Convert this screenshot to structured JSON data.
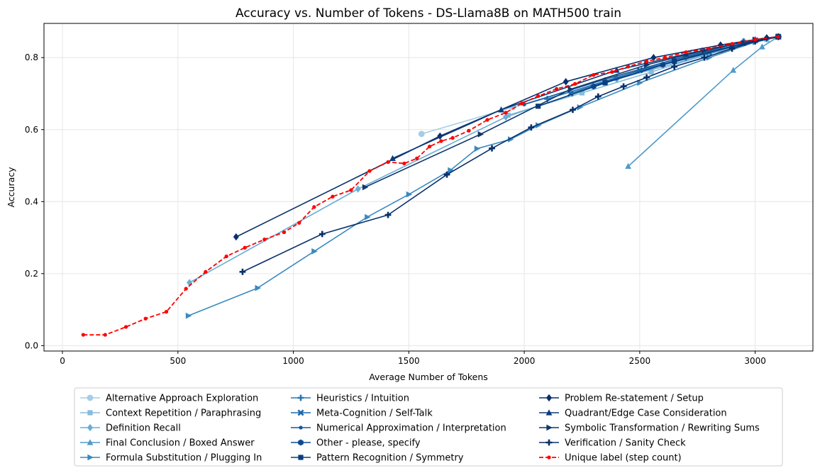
{
  "chart_data": {
    "type": "line",
    "title": "Accuracy vs. Number of Tokens - DS-Llama8B on MATH500 train",
    "xlabel": "Average Number of Tokens",
    "ylabel": "Accuracy",
    "xlim": [
      -80,
      3250
    ],
    "ylim": [
      -0.015,
      0.895
    ],
    "xticks": [
      0,
      500,
      1000,
      1500,
      2000,
      2500,
      3000
    ],
    "yticks": [
      0.0,
      0.2,
      0.4,
      0.6,
      0.8
    ],
    "xtick_labels": [
      "0",
      "500",
      "1000",
      "1500",
      "2000",
      "2500",
      "3000"
    ],
    "ytick_labels": [
      "0.0",
      "0.2",
      "0.4",
      "0.6",
      "0.8"
    ],
    "grid": true,
    "legend_position": "below",
    "series": [
      {
        "name": "Alternative Approach Exploration",
        "color": "#a6cde4",
        "marker": "circle",
        "dash": false,
        "x": [
          1555,
          1950,
          2350,
          2700,
          2950,
          3100
        ],
        "y": [
          0.588,
          0.662,
          0.73,
          0.8,
          0.845,
          0.858
        ]
      },
      {
        "name": "Context Repetition / Paraphrasing",
        "color": "#86bcdc",
        "marker": "square",
        "dash": false,
        "x": [
          1930,
          2250,
          2550,
          2850,
          3050,
          3100
        ],
        "y": [
          0.64,
          0.702,
          0.76,
          0.82,
          0.85,
          0.858
        ]
      },
      {
        "name": "Definition Recall",
        "color": "#6aaed6",
        "marker": "diamond",
        "dash": false,
        "x": [
          550,
          1280,
          1920,
          2400,
          2800,
          3050,
          3100
        ],
        "y": [
          0.175,
          0.435,
          0.635,
          0.74,
          0.81,
          0.852,
          0.858
        ]
      },
      {
        "name": "Final Conclusion / Boxed Answer",
        "color": "#4f9bcb",
        "marker": "triangle-up",
        "dash": false,
        "x": [
          2450,
          2905,
          3030,
          3100
        ],
        "y": [
          0.498,
          0.765,
          0.83,
          0.858
        ]
      },
      {
        "name": "Formula Substitution / Plugging In",
        "color": "#3a8ac1",
        "marker": "triangle-right",
        "dash": false,
        "x": [
          545,
          845,
          1090,
          1320,
          1500,
          1680,
          1795,
          1940,
          2060,
          2240,
          2500,
          2800,
          3000,
          3100
        ],
        "y": [
          0.083,
          0.16,
          0.262,
          0.357,
          0.42,
          0.487,
          0.547,
          0.573,
          0.612,
          0.662,
          0.73,
          0.8,
          0.843,
          0.858
        ]
      },
      {
        "name": "Heuristics / Intuition",
        "color": "#2777b4",
        "marker": "plus",
        "dash": false,
        "x": [
          2100,
          2400,
          2700,
          2950,
          3100
        ],
        "y": [
          0.685,
          0.745,
          0.8,
          0.845,
          0.858
        ]
      },
      {
        "name": "Meta-Cognition / Self-Talk",
        "color": "#1c68aa",
        "marker": "x",
        "dash": false,
        "x": [
          2200,
          2500,
          2800,
          3000,
          3100
        ],
        "y": [
          0.7,
          0.765,
          0.815,
          0.848,
          0.858
        ]
      },
      {
        "name": "Numerical Approximation / Interpretation",
        "color": "#13589d",
        "marker": "point",
        "dash": false,
        "x": [
          2000,
          2350,
          2650,
          2950,
          3100
        ],
        "y": [
          0.67,
          0.74,
          0.795,
          0.845,
          0.858
        ]
      },
      {
        "name": "Other - please, specify",
        "color": "#0d4a8e",
        "marker": "hexagon",
        "dash": false,
        "x": [
          2300,
          2600,
          2900,
          3100
        ],
        "y": [
          0.72,
          0.78,
          0.83,
          0.858
        ]
      },
      {
        "name": "Pattern Recognition / Symmetry",
        "color": "#0a3d7e",
        "marker": "square",
        "dash": false,
        "x": [
          2060,
          2350,
          2650,
          2950,
          3100
        ],
        "y": [
          0.665,
          0.73,
          0.79,
          0.84,
          0.858
        ]
      },
      {
        "name": "Problem Re-statement / Setup",
        "color": "#08306b",
        "marker": "diamond",
        "dash": false,
        "x": [
          752,
          1635,
          2180,
          2560,
          2850,
          3050,
          3100
        ],
        "y": [
          0.302,
          0.582,
          0.733,
          0.8,
          0.835,
          0.855,
          0.858
        ]
      },
      {
        "name": "Quadrant/Edge Case Consideration",
        "color": "#0b3b7a",
        "marker": "triangle-up",
        "dash": false,
        "x": [
          1430,
          1900,
          2400,
          2700,
          3000,
          3100
        ],
        "y": [
          0.52,
          0.655,
          0.765,
          0.81,
          0.85,
          0.858
        ]
      },
      {
        "name": "Symbolic Transformation / Rewriting Sums",
        "color": "#0f376d",
        "marker": "triangle-right",
        "dash": false,
        "x": [
          1310,
          1810,
          2200,
          2530,
          2780,
          3000,
          3100
        ],
        "y": [
          0.44,
          0.587,
          0.712,
          0.78,
          0.82,
          0.85,
          0.858
        ]
      },
      {
        "name": "Verification / Sanity Check",
        "color": "#08306b",
        "marker": "plus",
        "dash": false,
        "x": [
          780,
          1125,
          1410,
          1665,
          1860,
          2030,
          2210,
          2320,
          2430,
          2530,
          2650,
          2780,
          2900,
          3000,
          3100
        ],
        "y": [
          0.205,
          0.31,
          0.363,
          0.475,
          0.548,
          0.606,
          0.655,
          0.692,
          0.72,
          0.745,
          0.775,
          0.8,
          0.825,
          0.845,
          0.858
        ]
      },
      {
        "name": "Unique label (step count)",
        "color": "#ff0000",
        "marker": "point",
        "dash": true,
        "x": [
          90,
          185,
          275,
          360,
          450,
          535,
          620,
          710,
          790,
          875,
          960,
          1025,
          1090,
          1170,
          1250,
          1330,
          1410,
          1480,
          1535,
          1590,
          1640,
          1690,
          1760,
          1840,
          1920,
          1990,
          2060,
          2140,
          2220,
          2300,
          2380,
          2450,
          2530,
          2610,
          2700,
          2800,
          2900,
          3000,
          3100
        ],
        "y": [
          0.03,
          0.03,
          0.052,
          0.075,
          0.094,
          0.158,
          0.205,
          0.248,
          0.272,
          0.295,
          0.315,
          0.341,
          0.385,
          0.414,
          0.432,
          0.485,
          0.51,
          0.506,
          0.52,
          0.553,
          0.568,
          0.577,
          0.597,
          0.627,
          0.647,
          0.673,
          0.693,
          0.713,
          0.727,
          0.752,
          0.76,
          0.775,
          0.79,
          0.8,
          0.815,
          0.825,
          0.838,
          0.85,
          0.858
        ]
      }
    ]
  }
}
